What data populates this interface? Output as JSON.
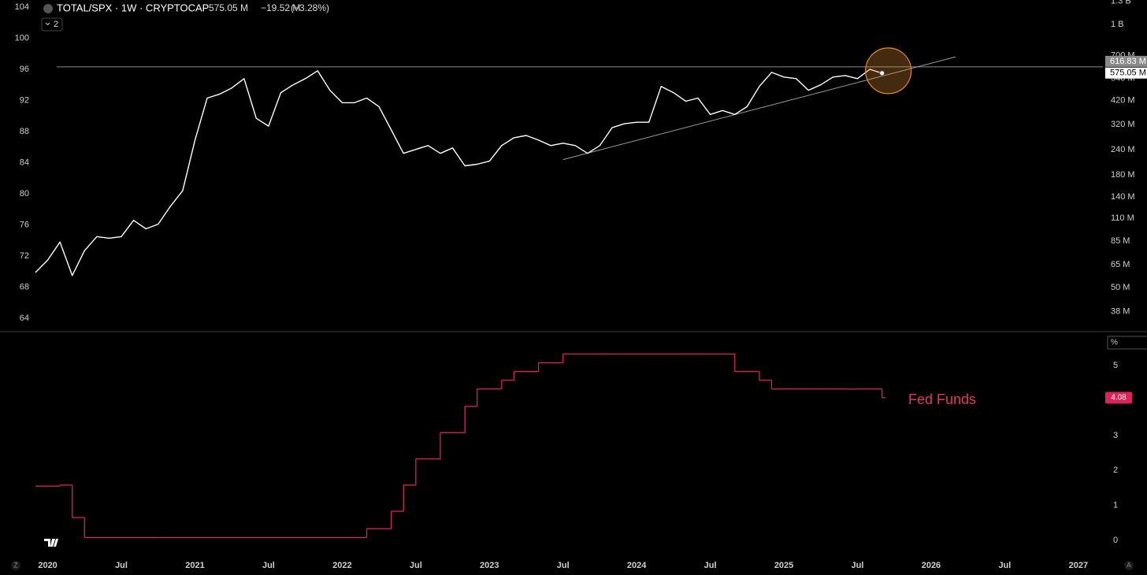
{
  "chart_data": [
    {
      "type": "line",
      "legend": {
        "symbol": "TOTAL/SPX · 1W · CRYPTOCAP",
        "last": "575.05 M",
        "change": "−19.52 M",
        "change_pct": "(−3.28%)"
      },
      "x": [
        "2019-12",
        "2020-01",
        "2020-02",
        "2020-03",
        "2020-04",
        "2020-05",
        "2020-06",
        "2020-07",
        "2020-08",
        "2020-09",
        "2020-10",
        "2020-11",
        "2020-12",
        "2021-01",
        "2021-02",
        "2021-03",
        "2021-04",
        "2021-05",
        "2021-06",
        "2021-07",
        "2021-08",
        "2021-09",
        "2021-10",
        "2021-11",
        "2021-12",
        "2022-01",
        "2022-02",
        "2022-03",
        "2022-04",
        "2022-05",
        "2022-06",
        "2022-07",
        "2022-08",
        "2022-09",
        "2022-10",
        "2022-11",
        "2022-12",
        "2023-01",
        "2023-02",
        "2023-03",
        "2023-04",
        "2023-05",
        "2023-06",
        "2023-07",
        "2023-08",
        "2023-09",
        "2023-10",
        "2023-11",
        "2023-12",
        "2024-01",
        "2024-02",
        "2024-03",
        "2024-04",
        "2024-05",
        "2024-06",
        "2024-07",
        "2024-08",
        "2024-09",
        "2024-10",
        "2024-11",
        "2024-12",
        "2025-01",
        "2025-02",
        "2025-03",
        "2025-04",
        "2025-05",
        "2025-06",
        "2025-07",
        "2025-08",
        "2025-09"
      ],
      "series": [
        {
          "name": "TOTAL/SPX",
          "color": "#ffffff",
          "values": [
            69.9,
            71.5,
            73.8,
            69.5,
            72.7,
            74.5,
            74.3,
            74.5,
            76.6,
            75.5,
            76.1,
            78.4,
            80.4,
            86.9,
            92.3,
            92.8,
            93.6,
            94.8,
            89.7,
            88.7,
            93.0,
            94.0,
            94.8,
            95.8,
            93.3,
            91.7,
            91.7,
            92.3,
            91.2,
            88.2,
            85.2,
            85.7,
            86.2,
            85.2,
            85.9,
            83.6,
            83.8,
            84.2,
            86.2,
            87.2,
            87.5,
            86.9,
            86.2,
            86.5,
            86.2,
            85.2,
            86.2,
            88.5,
            89.0,
            89.2,
            89.2,
            93.8,
            93.0,
            91.9,
            92.3,
            90.2,
            90.7,
            90.2,
            91.2,
            93.8,
            95.6,
            95.0,
            94.8,
            93.3,
            94.0,
            95.0,
            95.2,
            94.8,
            96.0,
            95.5
          ]
        }
      ],
      "xlim": [
        "2019-12",
        "2027-03"
      ],
      "ylim": [
        62.4,
        104.9
      ],
      "yticks": [
        64,
        68,
        72,
        76,
        80,
        84,
        88,
        92,
        96,
        100,
        104
      ],
      "y2lim": [
        30600000,
        1320000000
      ],
      "y2log": true,
      "y2ticks": [
        {
          "value": 38000000,
          "label": "38 M"
        },
        {
          "value": 50000000,
          "label": "50 M"
        },
        {
          "value": 65000000,
          "label": "65 M"
        },
        {
          "value": 85000000,
          "label": "85 M"
        },
        {
          "value": 110000000,
          "label": "110 M"
        },
        {
          "value": 140000000,
          "label": "140 M"
        },
        {
          "value": 180000000,
          "label": "180 M"
        },
        {
          "value": 240000000,
          "label": "240 M"
        },
        {
          "value": 320000000,
          "label": "320 M"
        },
        {
          "value": 420000000,
          "label": "420 M"
        },
        {
          "value": 540000000,
          "label": "540 M"
        },
        {
          "value": 700000000,
          "label": "700 M"
        },
        {
          "value": 1000000000,
          "label": "1 B"
        },
        {
          "value": 1300000000,
          "label": "1.3 B"
        }
      ],
      "hline": {
        "value": 616830000,
        "label": "616.83 M",
        "color": "#8a8a8a"
      },
      "last_price": {
        "value": 575050000,
        "label": "575.05 M"
      },
      "trendline": {
        "x": [
          "2023-07",
          "2026-03"
        ],
        "values": [
          84.4,
          97.6
        ],
        "color": "#9a9a9a"
      },
      "highlight_color": "#e08a30",
      "grid": false
    },
    {
      "type": "step",
      "x": [
        "2019-12",
        "2020-01",
        "2020-02",
        "2020-03",
        "2020-04",
        "2020-05",
        "2020-06",
        "2020-07",
        "2020-08",
        "2020-09",
        "2020-10",
        "2020-11",
        "2020-12",
        "2021-01",
        "2021-02",
        "2021-03",
        "2021-04",
        "2021-05",
        "2021-06",
        "2021-07",
        "2021-08",
        "2021-09",
        "2021-10",
        "2021-11",
        "2021-12",
        "2022-01",
        "2022-02",
        "2022-03",
        "2022-04",
        "2022-05",
        "2022-06",
        "2022-07",
        "2022-08",
        "2022-09",
        "2022-10",
        "2022-11",
        "2022-12",
        "2023-01",
        "2023-02",
        "2023-03",
        "2023-04",
        "2023-05",
        "2023-06",
        "2023-07",
        "2023-08",
        "2023-09",
        "2023-10",
        "2023-11",
        "2023-12",
        "2024-01",
        "2024-02",
        "2024-03",
        "2024-04",
        "2024-05",
        "2024-06",
        "2024-07",
        "2024-08",
        "2024-09",
        "2024-10",
        "2024-11",
        "2024-12",
        "2025-01",
        "2025-02",
        "2025-03",
        "2025-04",
        "2025-05",
        "2025-06",
        "2025-07",
        "2025-08",
        "2025-09"
      ],
      "series": [
        {
          "name": "Fed Funds",
          "color": "#d8245a",
          "values": [
            1.55,
            1.55,
            1.58,
            0.65,
            0.08,
            0.08,
            0.08,
            0.08,
            0.08,
            0.08,
            0.08,
            0.08,
            0.08,
            0.08,
            0.08,
            0.08,
            0.08,
            0.08,
            0.08,
            0.08,
            0.08,
            0.08,
            0.08,
            0.08,
            0.08,
            0.08,
            0.08,
            0.33,
            0.33,
            0.83,
            1.58,
            2.33,
            2.33,
            3.08,
            3.08,
            3.83,
            4.33,
            4.33,
            4.58,
            4.83,
            4.83,
            5.08,
            5.08,
            5.33,
            5.33,
            5.33,
            5.33,
            5.33,
            5.33,
            5.33,
            5.33,
            5.33,
            5.33,
            5.33,
            5.33,
            5.33,
            5.33,
            4.83,
            4.83,
            4.58,
            4.33,
            4.33,
            4.33,
            4.33,
            4.33,
            4.33,
            4.33,
            4.33,
            4.33,
            4.08
          ]
        }
      ],
      "annotation": "Fed Funds",
      "unit_label": "%",
      "xlim": [
        "2019-12",
        "2027-03"
      ],
      "xticks": [
        {
          "value": "2020-01",
          "label": "2020"
        },
        {
          "value": "2020-07",
          "label": "Jul"
        },
        {
          "value": "2021-01",
          "label": "2021"
        },
        {
          "value": "2021-07",
          "label": "Jul"
        },
        {
          "value": "2022-01",
          "label": "2022"
        },
        {
          "value": "2022-07",
          "label": "Jul"
        },
        {
          "value": "2023-01",
          "label": "2023"
        },
        {
          "value": "2023-07",
          "label": "Jul"
        },
        {
          "value": "2024-01",
          "label": "2024"
        },
        {
          "value": "2024-07",
          "label": "Jul"
        },
        {
          "value": "2025-01",
          "label": "2025"
        },
        {
          "value": "2025-07",
          "label": "Jul"
        },
        {
          "value": "2026-01",
          "label": "2026"
        },
        {
          "value": "2026-07",
          "label": "Jul"
        },
        {
          "value": "2027-01",
          "label": "2027"
        }
      ],
      "y2lim": [
        -0.43,
        5.95
      ],
      "y2ticks": [
        0,
        1,
        2,
        3,
        4,
        5
      ],
      "grid": false
    }
  ],
  "ui": {
    "badge": "2",
    "scale_buttons": [
      "Z",
      "A"
    ]
  }
}
